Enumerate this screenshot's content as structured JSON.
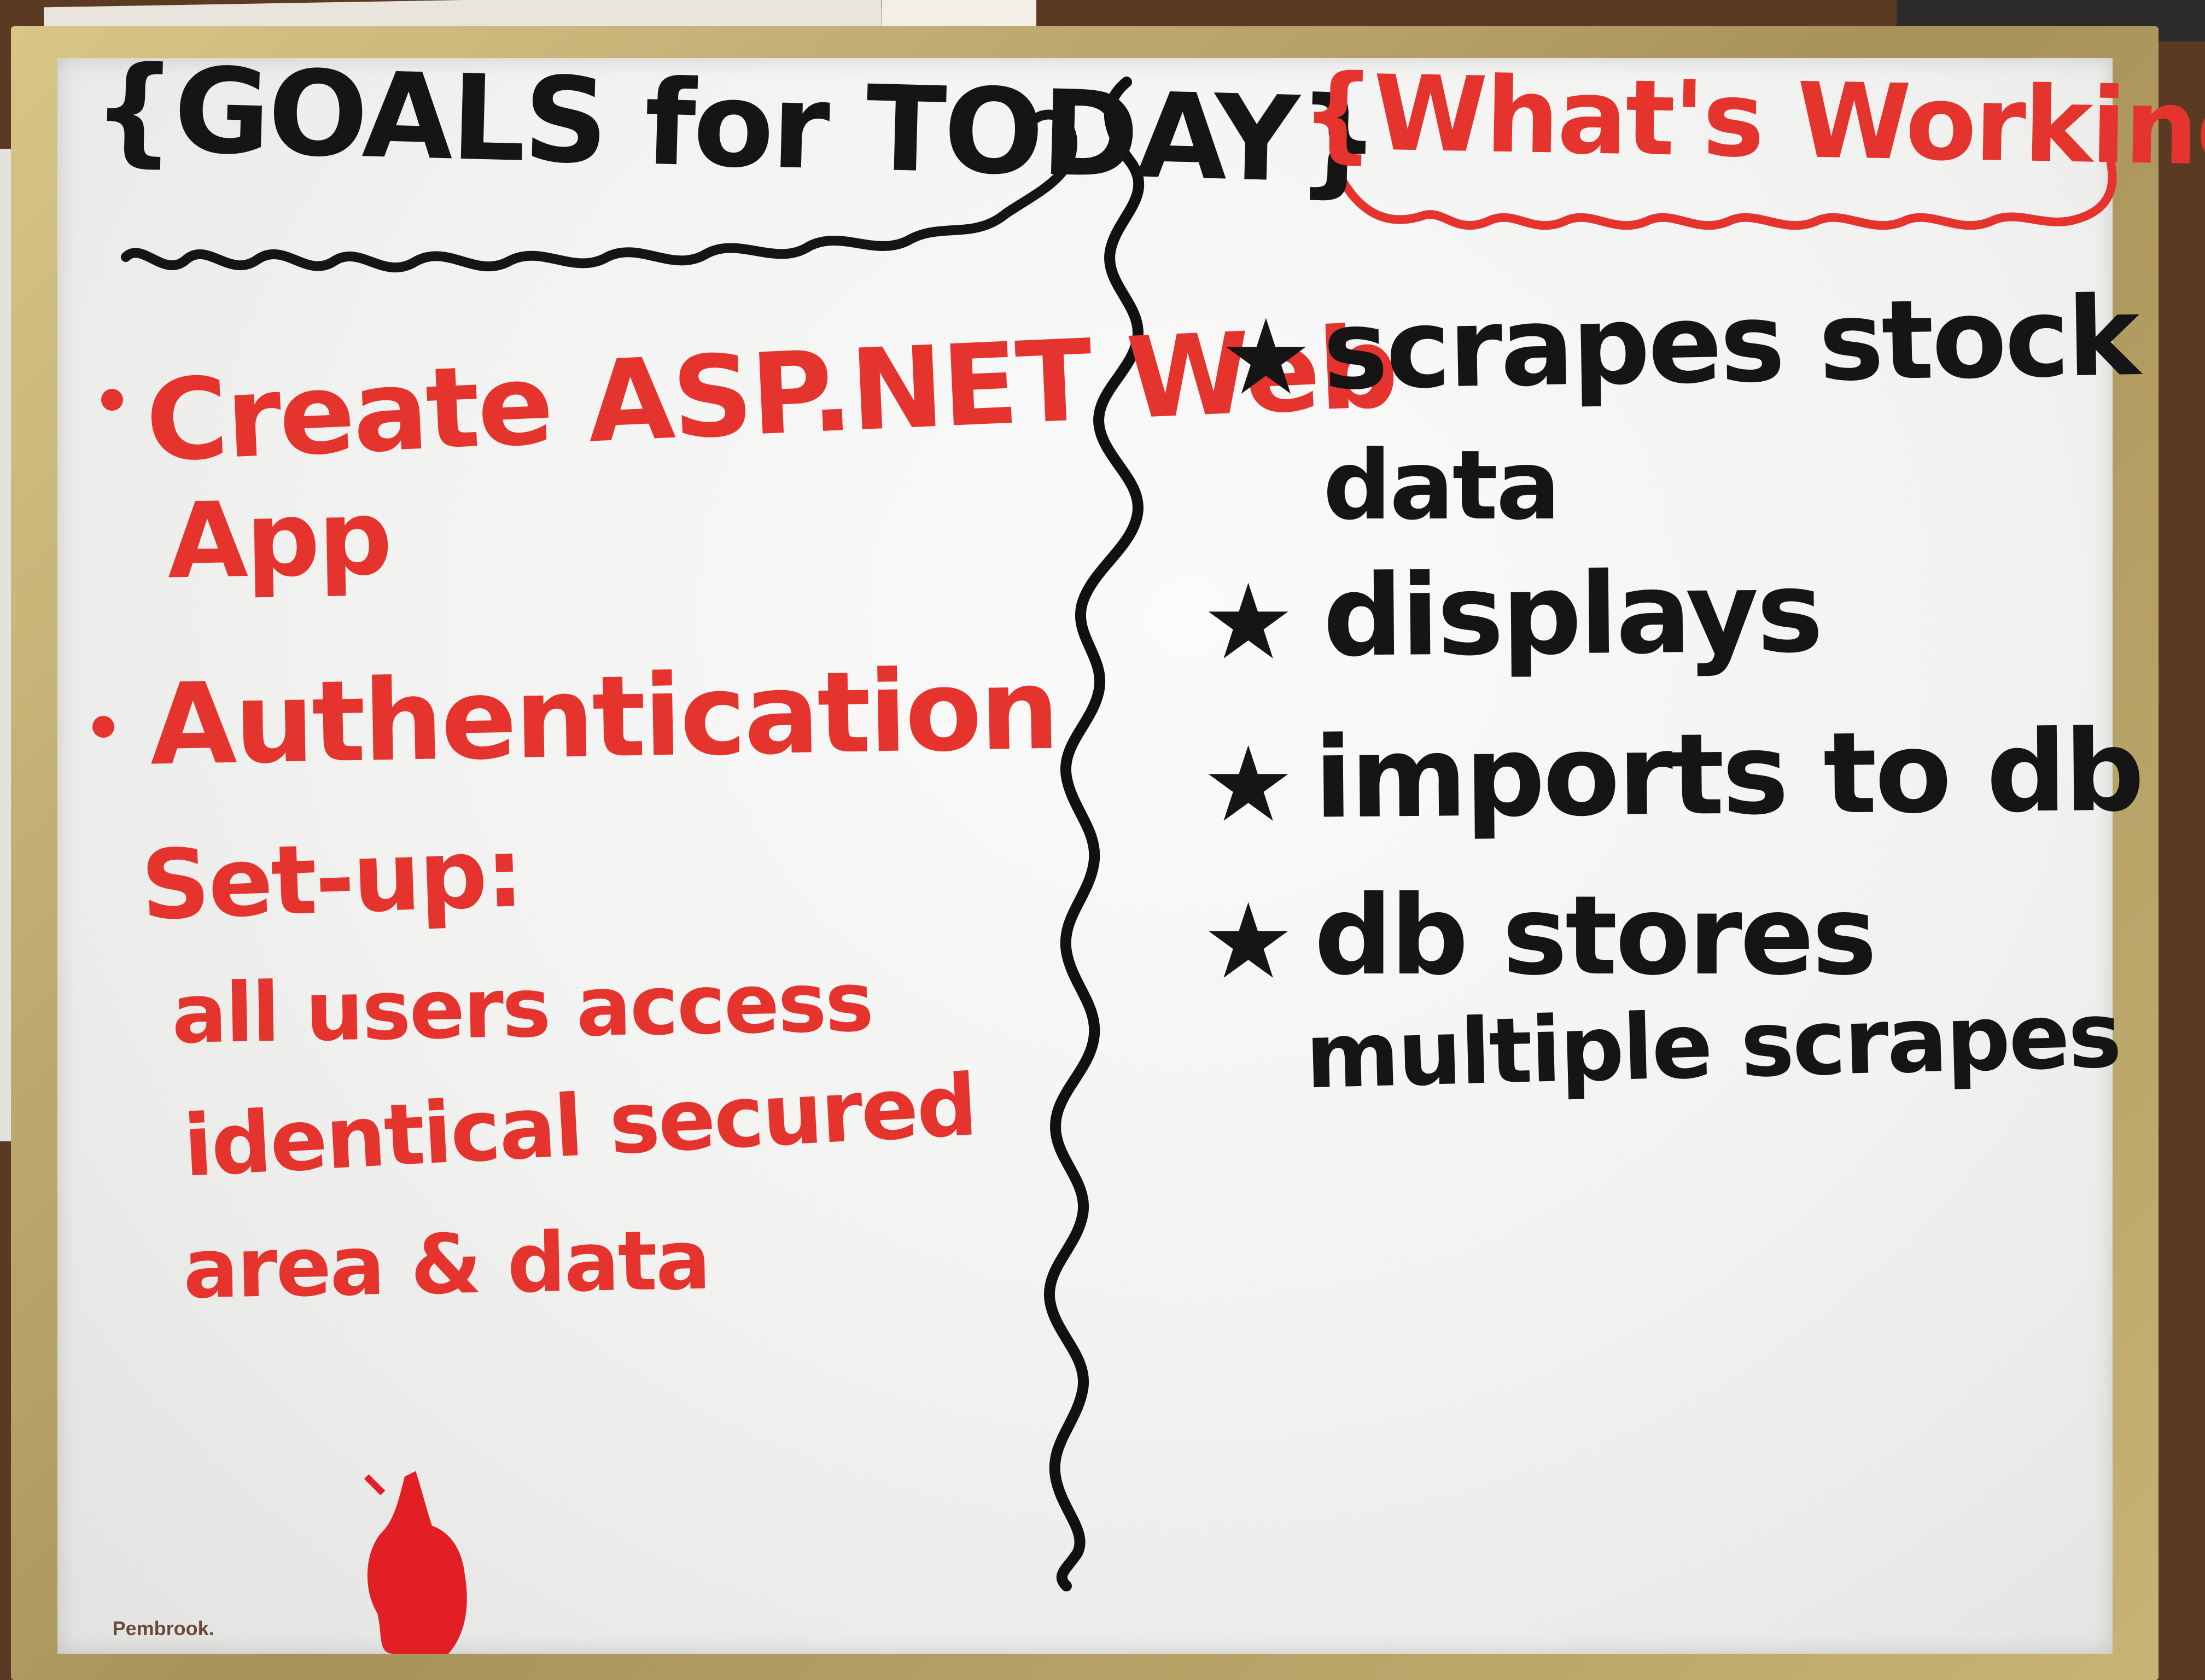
{
  "left_column": {
    "title": "{GOALS for TODAY}",
    "items": [
      "Create ASP.NET Web",
      "App",
      "Authentication",
      "Set-up:",
      "all users access",
      "identical secured",
      "area & data"
    ]
  },
  "right_column": {
    "title": "{What's Working}",
    "items": [
      "scrapes stock",
      "data",
      "displays",
      "imports to db",
      "db stores",
      "multiple scrapes"
    ]
  },
  "board_brand": "Pembrook.",
  "colors": {
    "red_marker": "#e5342d",
    "black_marker": "#151515",
    "frame": "#c7b374"
  },
  "icon_names": [
    "star-icon",
    "bullet-dot-icon"
  ]
}
